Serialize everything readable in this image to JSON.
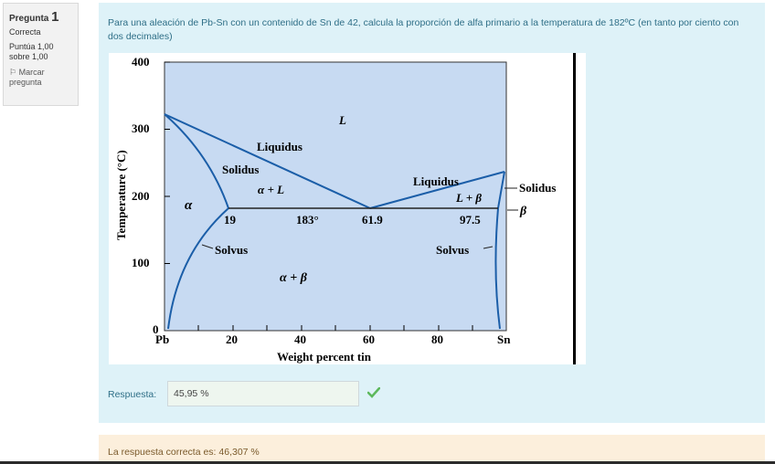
{
  "question_info": {
    "label": "Pregunta",
    "number": "1",
    "state": "Correcta",
    "grade": "Puntúa 1,00 sobre 1,00",
    "flag": "Marcar pregunta"
  },
  "question": {
    "text": "Para una aleación de Pb-Sn con un contenido de Sn de 42, calcula la proporción de alfa primario a la temperatura de 182ºC (en tanto por ciento con dos decimales)"
  },
  "figure": {
    "ylabel": "Temperature (°C)",
    "xlabel": "Weight percent tin",
    "y_ticks": [
      "0",
      "100",
      "200",
      "300",
      "400"
    ],
    "x_ticks": [
      "Pb",
      "20",
      "40",
      "60",
      "80",
      "Sn"
    ],
    "labels": {
      "L": "L",
      "liquidus_left": "Liquidus",
      "liquidus_right": "Liquidus",
      "solidus_left": "Solidus",
      "solidus_right": "Solidus",
      "alpha": "α",
      "alpha_L": "α + L",
      "L_beta": "L + β",
      "beta": "β",
      "alpha_beta": "α + β",
      "solvus_left": "Solvus",
      "solvus_right": "Solvus",
      "eut_19": "19",
      "eut_183": "183°",
      "eut_619": "61.9",
      "eut_975": "97.5"
    }
  },
  "answer": {
    "label": "Respuesta:",
    "value": "45,95 %",
    "status_icon": "checkmark-icon"
  },
  "feedback": {
    "text": "La respuesta correcta es: 46,307 %"
  },
  "colors": {
    "panel_bg": "#def2f8",
    "feedback_bg": "#fcefdc",
    "diagram_fill": "#c7daf2",
    "curve": "#1b5ea8",
    "check": "#5cb85c"
  }
}
